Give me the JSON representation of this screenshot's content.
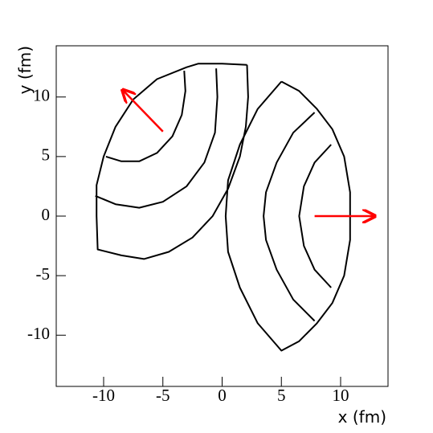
{
  "chart_data": {
    "type": "line",
    "x_label": "x (fm)",
    "y_label": "y (fm)",
    "xlim": [
      -14,
      14
    ],
    "ylim": [
      -14.3,
      14.3
    ],
    "xticks": [
      -10,
      -5,
      0,
      5,
      10
    ],
    "yticks": [
      -10,
      -5,
      0,
      5,
      10
    ],
    "series": [
      {
        "color": "#000000",
        "x": [
          5.0,
          6.5,
          8,
          9.3,
          10.3,
          10.8,
          10.8,
          10.8,
          10.3,
          9.3,
          8,
          6.5,
          5.0,
          3,
          1.5,
          0.5,
          0.3,
          0.5,
          1.5,
          3,
          5.0
        ],
        "y": [
          11.3,
          10.5,
          9,
          7.3,
          5,
          2,
          0,
          -2,
          -5,
          -7.3,
          -9,
          -10.5,
          -11.3,
          -9,
          -6,
          -3,
          0,
          3,
          6,
          9,
          11.3
        ]
      },
      {
        "color": "#000000",
        "x": [
          7.8,
          6,
          4.6,
          3.7,
          3.5,
          3.7,
          4.6,
          6,
          7.8
        ],
        "y": [
          8.7,
          7,
          4.5,
          2,
          0,
          -2,
          -4.5,
          -7,
          -8.8
        ]
      },
      {
        "color": "#000000",
        "x": [
          9.2,
          7.8,
          6.9,
          6.5,
          6.9,
          7.8,
          9.2
        ],
        "y": [
          6,
          4.5,
          2.5,
          0,
          -2.5,
          -4.5,
          -6
        ]
      },
      {
        "color": "#000000",
        "x": [
          2.1,
          2.2,
          2.0,
          1.5,
          0.5,
          -0.8,
          -2.5,
          -4.5,
          -6.6,
          -8.5,
          -10.5,
          -10.6,
          -10.6,
          -10,
          -9,
          -7.5,
          -5.5,
          -3,
          -2,
          0,
          2.1
        ],
        "y": [
          12.7,
          10,
          7.5,
          5,
          2.3,
          0,
          -1.8,
          -3.0,
          -3.6,
          -3.3,
          -2.8,
          0,
          2.6,
          5,
          7.5,
          9.8,
          11.5,
          12.5,
          12.8,
          12.8,
          12.7
        ]
      },
      {
        "color": "#000000",
        "x": [
          -10.7,
          -9,
          -7,
          -5,
          -3,
          -1.5,
          -0.6,
          -0.4,
          -0.5
        ],
        "y": [
          1.7,
          1,
          0.7,
          1.2,
          2.5,
          4.5,
          7,
          10,
          12.4
        ]
      },
      {
        "color": "#000000",
        "x": [
          -9.8,
          -8.5,
          -7,
          -5.5,
          -4.2,
          -3.4,
          -3.1,
          -3.2
        ],
        "y": [
          5,
          4.6,
          4.6,
          5.3,
          6.7,
          8.5,
          10.5,
          12.2
        ]
      }
    ],
    "arrows": [
      {
        "color": "#ff0000",
        "x": [
          -5,
          -8.4
        ],
        "y": [
          7.1,
          10.6
        ]
      },
      {
        "color": "#ff0000",
        "x": [
          7.8,
          12.9
        ],
        "y": [
          0,
          0
        ]
      }
    ]
  }
}
